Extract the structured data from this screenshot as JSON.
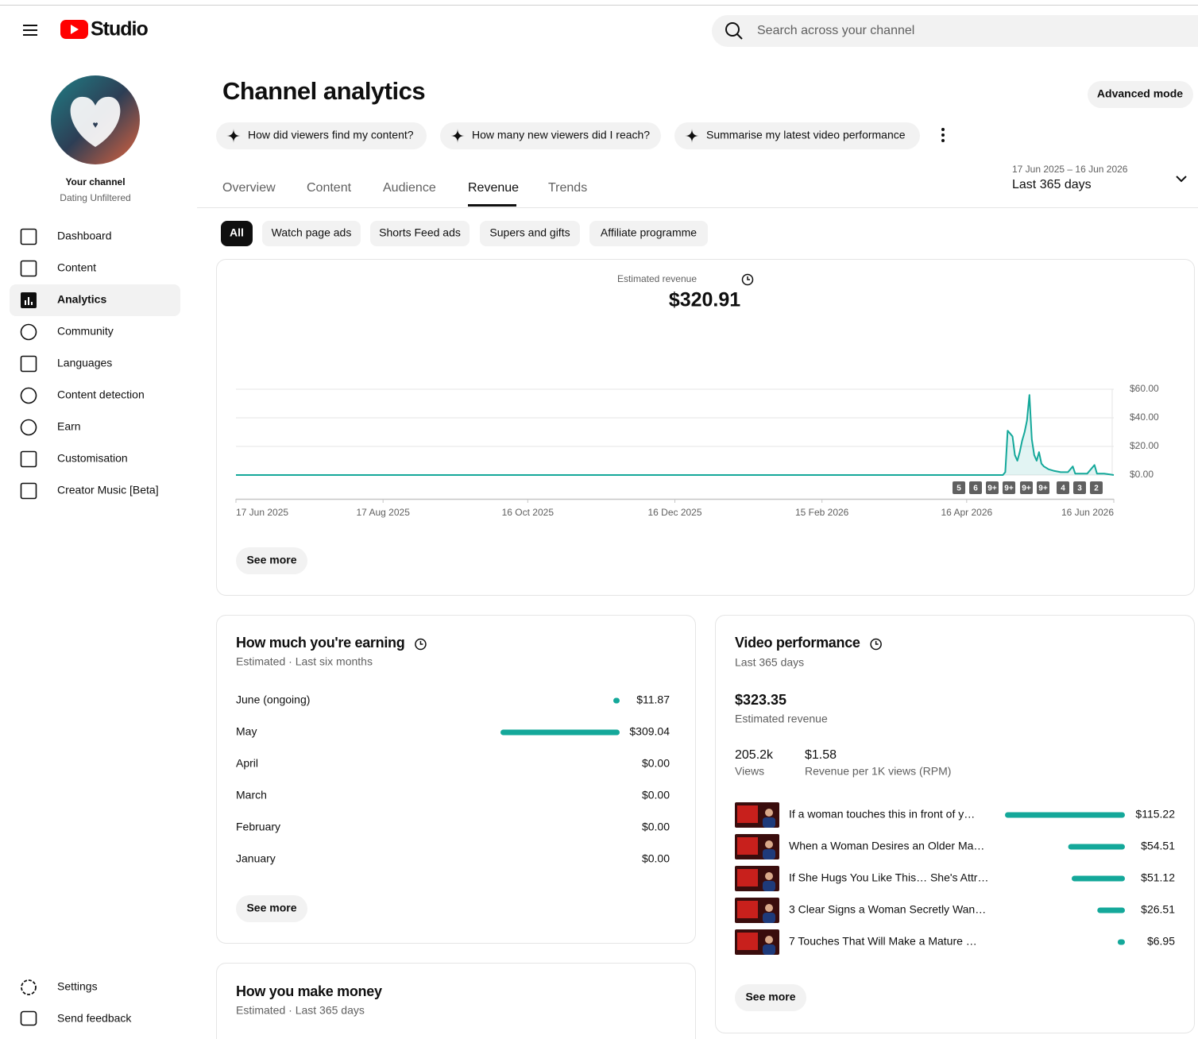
{
  "header": {
    "logo": "Studio",
    "search_placeholder": "Search across your channel"
  },
  "sidebar": {
    "channel_label": "Your channel",
    "channel_name": "Dating Unfiltered",
    "nav": [
      "Dashboard",
      "Content",
      "Analytics",
      "Community",
      "Languages",
      "Content detection",
      "Earn",
      "Customisation",
      "Creator Music [Beta]"
    ],
    "active": "Analytics",
    "bottom": [
      "Settings",
      "Send feedback"
    ]
  },
  "page": {
    "title": "Channel analytics",
    "advanced_mode": "Advanced mode",
    "prompts": [
      "How did viewers find my content?",
      "How many new viewers did I reach?",
      "Summarise my latest video performance"
    ],
    "tabs": [
      "Overview",
      "Content",
      "Audience",
      "Revenue",
      "Trends"
    ],
    "active_tab": "Revenue",
    "date_range": "17 Jun 2025 – 16 Jun 2026",
    "period": "Last 365 days",
    "filters": [
      "All",
      "Watch page ads",
      "Shorts Feed ads",
      "Supers and gifts",
      "Affiliate programme"
    ],
    "active_filter": "All",
    "see_more": "See more",
    "money_card": {
      "title": "How you make money",
      "subtitle": "Estimated · Last 365 days"
    },
    "video_card": {
      "subtitle": "Last 365 days",
      "total": "$323.35",
      "total_label": "Estimated revenue",
      "stats": [
        {
          "value": "205.2k",
          "label": "Views"
        },
        {
          "value": "$1.58",
          "label": "Revenue per 1K views (RPM)"
        }
      ]
    }
  },
  "chart_data": [
    {
      "type": "line",
      "title": "Estimated revenue",
      "total": "$320.91",
      "color": "#14a89a",
      "x": [
        "17 Jun 2025",
        "1 May 2026",
        "2 May 2026",
        "3 May 2026",
        "4 May 2026",
        "5 May 2026",
        "6 May 2026",
        "7 May 2026",
        "8 May 2026",
        "9 May 2026",
        "10 May 2026",
        "11 May 2026",
        "12 May 2026",
        "13 May 2026",
        "14 May 2026",
        "15 May 2026",
        "16 May 2026",
        "17 May 2026",
        "18 May 2026",
        "19 May 2026",
        "20 May 2026",
        "22 May 2026",
        "25 May 2026",
        "28 May 2026",
        "30 May 2026",
        "31 May 2026",
        "3 Jun 2026",
        "5 Jun 2026",
        "8 Jun 2026",
        "9 Jun 2026",
        "12 Jun 2026",
        "16 Jun 2026"
      ],
      "values": [
        0,
        0,
        2,
        31,
        29,
        27,
        14,
        10,
        16,
        24,
        30,
        38,
        56,
        25,
        14,
        10,
        16,
        8,
        6,
        5,
        4,
        3,
        2,
        2,
        6,
        1,
        1,
        1,
        7,
        1,
        1,
        0
      ],
      "xlim": [
        "17 Jun 2025",
        "16 Jun 2026"
      ],
      "xticks": [
        "17 Jun 2025",
        "17 Aug 2025",
        "16 Oct 2025",
        "16 Dec 2025",
        "15 Feb 2026",
        "16 Apr 2026",
        "16 Jun 2026"
      ],
      "ylim": [
        0,
        60
      ],
      "yticks": [
        {
          "value": 0,
          "label": "$0.00"
        },
        {
          "value": 20,
          "label": "$20.00"
        },
        {
          "value": 40,
          "label": "$40.00"
        },
        {
          "value": 60,
          "label": "$60.00"
        }
      ],
      "grid": true,
      "annotations": [
        "5",
        "6",
        "9+",
        "9+",
        "9+",
        "9+",
        "4",
        "3",
        "2"
      ]
    },
    {
      "type": "bar",
      "title": "How much you're earning",
      "subtitle": "Estimated · Last six months",
      "color": "#14a89a",
      "categories": [
        "June (ongoing)",
        "May",
        "April",
        "March",
        "February",
        "January"
      ],
      "values": [
        11.87,
        309.04,
        0,
        0,
        0,
        0
      ],
      "value_labels": [
        "$11.87",
        "$309.04",
        "$0.00",
        "$0.00",
        "$0.00",
        "$0.00"
      ]
    },
    {
      "type": "bar",
      "title": "Video performance",
      "color": "#14a89a",
      "categories": [
        "If a woman touches this in front of y…",
        "When a Woman Desires an Older Ma…",
        "If She Hugs You Like This… She's Attr…",
        "3 Clear Signs a Woman Secretly Wan…",
        "7 Touches That Will Make a Mature …"
      ],
      "values": [
        115.22,
        54.51,
        51.12,
        26.51,
        6.95
      ],
      "value_labels": [
        "$115.22",
        "$54.51",
        "$51.12",
        "$26.51",
        "$6.95"
      ]
    }
  ]
}
